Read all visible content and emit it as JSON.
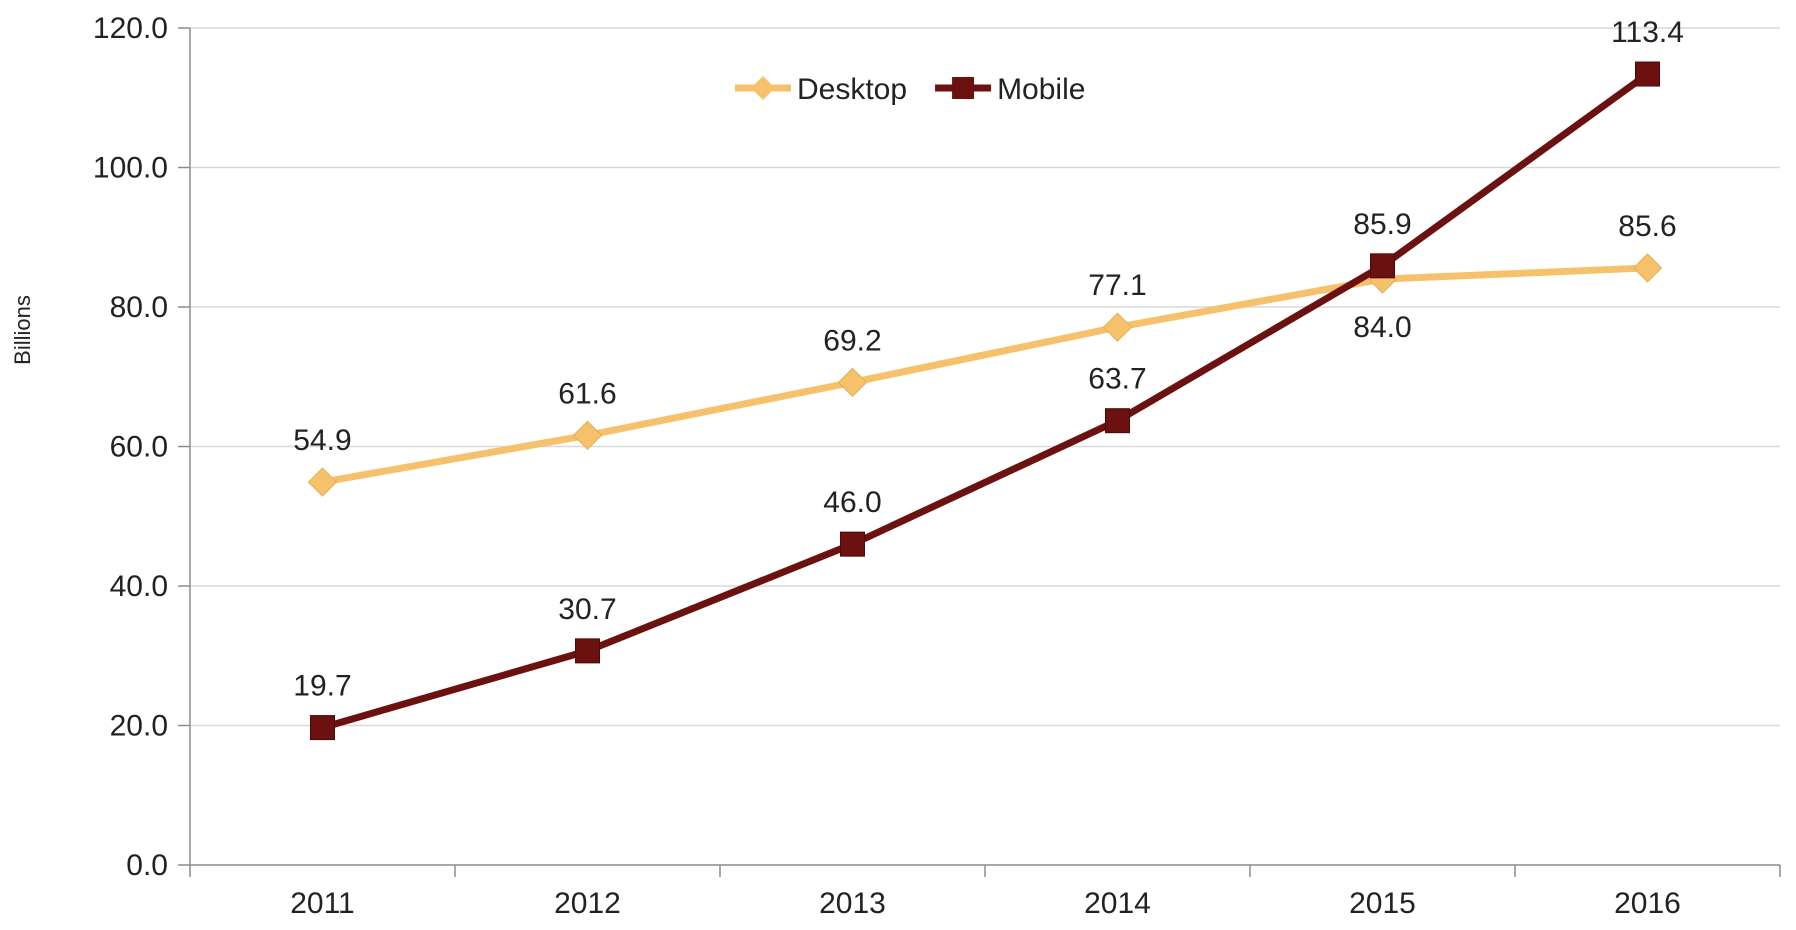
{
  "chart_data": {
    "type": "line",
    "title": "",
    "xlabel": "",
    "ylabel": "Billions",
    "ylim": [
      0,
      120
    ],
    "y_ticks": [
      "0.0",
      "20.0",
      "40.0",
      "60.0",
      "80.0",
      "100.0",
      "120.0"
    ],
    "y_tick_values": [
      0,
      20,
      40,
      60,
      80,
      100,
      120
    ],
    "categories": [
      "2011",
      "2012",
      "2013",
      "2014",
      "2015",
      "2016"
    ],
    "grid": true,
    "legend_position": "top-center",
    "series": [
      {
        "name": "Desktop",
        "values": [
          54.9,
          61.6,
          69.2,
          77.1,
          84.0,
          85.6
        ],
        "labels": [
          "54.9",
          "61.6",
          "69.2",
          "77.1",
          "84.0",
          "85.6"
        ],
        "label_positions": [
          "above",
          "above",
          "above",
          "above",
          "below",
          "above"
        ],
        "color": "#F5C26B",
        "marker": "diamond"
      },
      {
        "name": "Mobile",
        "values": [
          19.7,
          30.7,
          46.0,
          63.7,
          85.9,
          113.4
        ],
        "labels": [
          "19.7",
          "30.7",
          "46.0",
          "63.7",
          "85.9",
          "113.4"
        ],
        "label_positions": [
          "above",
          "above",
          "above",
          "above",
          "above",
          "above"
        ],
        "color": "#6B1210",
        "marker": "square"
      }
    ]
  }
}
